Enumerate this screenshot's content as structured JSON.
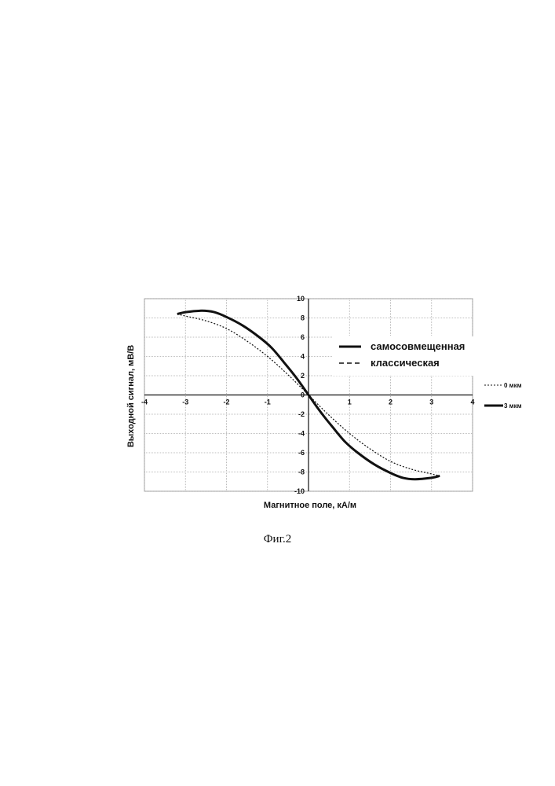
{
  "chart_data": {
    "type": "line",
    "xlabel": "Магнитное поле, кА/м",
    "ylabel": "Выходной сигнал, мВ/В",
    "xlim": [
      -4,
      4
    ],
    "ylim": [
      -10,
      10
    ],
    "x_ticks": [
      -4,
      -3,
      -2,
      -1,
      0,
      1,
      2,
      3,
      4
    ],
    "y_ticks": [
      -10,
      -8,
      -6,
      -4,
      -2,
      0,
      2,
      4,
      6,
      8,
      10
    ],
    "grid": true,
    "legend_inner": [
      "самосовмещенная",
      "классическая"
    ],
    "legend_outer": [
      "0 мкм",
      "3 мкм"
    ],
    "series": [
      {
        "name": "3 мкм",
        "style": "solid-thick",
        "x": [
          -3.2,
          -3.0,
          -2.6,
          -2.3,
          -2.0,
          -1.6,
          -1.2,
          -0.9,
          -0.6,
          -0.3,
          0,
          0.3,
          0.6,
          0.9,
          1.2,
          1.6,
          2.0,
          2.3,
          2.6,
          3.0,
          3.2
        ],
        "y": [
          8.4,
          8.6,
          8.75,
          8.6,
          8.1,
          7.2,
          6.0,
          4.9,
          3.4,
          1.8,
          0,
          -1.8,
          -3.4,
          -4.9,
          -6.0,
          -7.2,
          -8.1,
          -8.6,
          -8.75,
          -8.6,
          -8.4
        ]
      },
      {
        "name": "0 мкм",
        "style": "dashed",
        "x": [
          -3.2,
          -3.0,
          -2.5,
          -2.0,
          -1.5,
          -1.0,
          -0.5,
          0,
          0.5,
          1.0,
          1.5,
          2.0,
          2.5,
          3.0,
          3.2
        ],
        "y": [
          8.4,
          8.2,
          7.7,
          6.9,
          5.6,
          4.0,
          2.1,
          0,
          -2.1,
          -4.0,
          -5.6,
          -6.9,
          -7.7,
          -8.2,
          -8.4
        ]
      }
    ]
  },
  "caption": "Фиг.2"
}
